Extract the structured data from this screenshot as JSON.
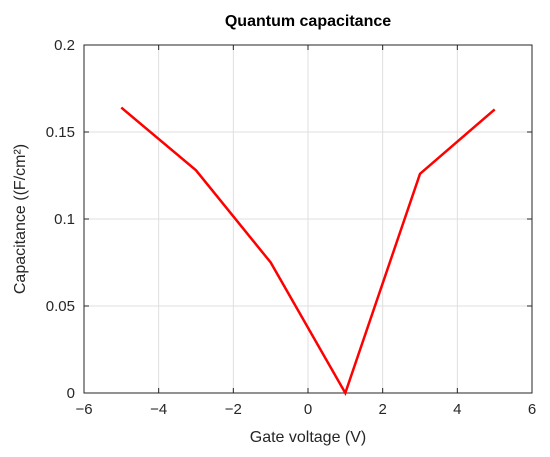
{
  "chart_data": {
    "type": "line",
    "title": "Quantum capacitance",
    "xlabel": "Gate voltage (V)",
    "ylabel": "Capacitance ((F/cm²)",
    "xlim": [
      -6,
      6
    ],
    "ylim": [
      0,
      0.2
    ],
    "xticks": [
      -6,
      -4,
      -2,
      0,
      2,
      4,
      6
    ],
    "xtick_labels": [
      "−6",
      "−4",
      "−2",
      "0",
      "2",
      "4",
      "6"
    ],
    "yticks": [
      0,
      0.05,
      0.1,
      0.15,
      0.2
    ],
    "ytick_labels": [
      "0",
      "0.05",
      "0.1",
      "0.15",
      "0.2"
    ],
    "grid": true,
    "series": [
      {
        "color": "#ff0000",
        "x": [
          -5,
          -3,
          -1,
          1,
          3,
          5
        ],
        "y": [
          0.164,
          0.128,
          0.075,
          0.0,
          0.126,
          0.163
        ]
      }
    ]
  }
}
